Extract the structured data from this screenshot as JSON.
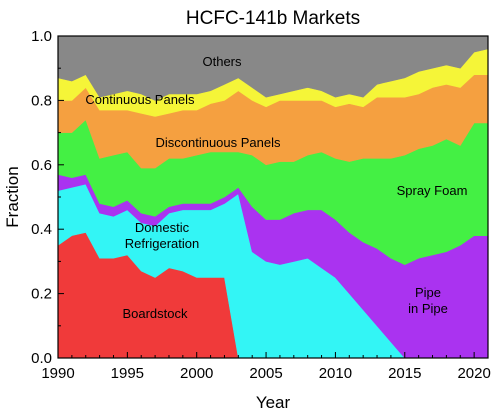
{
  "chart_data": {
    "type": "area",
    "stacked": true,
    "title": "HCFC-141b Markets",
    "xlabel": "Year",
    "ylabel": "Fraction",
    "xlim": [
      1990,
      2021
    ],
    "ylim": [
      0,
      1.0
    ],
    "xticks": [
      1990,
      1995,
      2000,
      2005,
      2010,
      2015,
      2020
    ],
    "yticks": [
      0.0,
      0.2,
      0.4,
      0.6,
      0.8,
      1.0
    ],
    "grid": false,
    "x": [
      1990,
      1991,
      1992,
      1993,
      1994,
      1995,
      1996,
      1997,
      1998,
      1999,
      2000,
      2001,
      2002,
      2003,
      2004,
      2005,
      2006,
      2007,
      2008,
      2009,
      2010,
      2011,
      2012,
      2013,
      2014,
      2015,
      2016,
      2017,
      2018,
      2019,
      2020,
      2021
    ],
    "series": [
      {
        "name": "Boardstock",
        "color": "#f03a3a",
        "values": [
          0.35,
          0.38,
          0.39,
          0.31,
          0.31,
          0.32,
          0.27,
          0.25,
          0.28,
          0.27,
          0.25,
          0.25,
          0.25,
          0.0,
          0.0,
          0.0,
          0.0,
          0.0,
          0.0,
          0.0,
          0.0,
          0.0,
          0.0,
          0.0,
          0.0,
          0.0,
          0.0,
          0.0,
          0.0,
          0.0,
          0.0,
          0.0
        ]
      },
      {
        "name": "Domestic\nRefrigeration",
        "color": "#33f5f5",
        "values": [
          0.17,
          0.15,
          0.15,
          0.14,
          0.13,
          0.14,
          0.15,
          0.16,
          0.17,
          0.19,
          0.21,
          0.21,
          0.23,
          0.51,
          0.33,
          0.3,
          0.29,
          0.3,
          0.31,
          0.28,
          0.25,
          0.2,
          0.15,
          0.1,
          0.05,
          0.0,
          0.0,
          0.0,
          0.0,
          0.0,
          0.0,
          0.0
        ]
      },
      {
        "name": "Pipe\nin Pipe",
        "color": "#aa33f0",
        "values": [
          0.05,
          0.03,
          0.03,
          0.03,
          0.03,
          0.03,
          0.03,
          0.03,
          0.02,
          0.02,
          0.02,
          0.02,
          0.02,
          0.02,
          0.14,
          0.13,
          0.14,
          0.15,
          0.15,
          0.18,
          0.18,
          0.19,
          0.21,
          0.24,
          0.26,
          0.29,
          0.31,
          0.32,
          0.33,
          0.35,
          0.38,
          0.38
        ]
      },
      {
        "name": "Spray Foam",
        "color": "#44f044",
        "values": [
          0.13,
          0.14,
          0.17,
          0.14,
          0.16,
          0.15,
          0.14,
          0.15,
          0.15,
          0.14,
          0.15,
          0.16,
          0.14,
          0.11,
          0.16,
          0.17,
          0.18,
          0.16,
          0.17,
          0.18,
          0.19,
          0.22,
          0.26,
          0.28,
          0.31,
          0.34,
          0.34,
          0.34,
          0.35,
          0.31,
          0.35,
          0.35
        ]
      },
      {
        "name": "Discontinuous Panels",
        "color": "#f5a040",
        "values": [
          0.1,
          0.1,
          0.1,
          0.15,
          0.14,
          0.13,
          0.17,
          0.16,
          0.14,
          0.15,
          0.14,
          0.15,
          0.16,
          0.19,
          0.17,
          0.18,
          0.19,
          0.19,
          0.17,
          0.16,
          0.16,
          0.18,
          0.16,
          0.19,
          0.19,
          0.18,
          0.17,
          0.18,
          0.17,
          0.18,
          0.15,
          0.15
        ]
      },
      {
        "name": "Continuous Panels",
        "color": "#f5f538",
        "values": [
          0.07,
          0.06,
          0.04,
          0.04,
          0.05,
          0.06,
          0.06,
          0.05,
          0.06,
          0.05,
          0.05,
          0.04,
          0.05,
          0.04,
          0.04,
          0.03,
          0.02,
          0.03,
          0.04,
          0.03,
          0.03,
          0.03,
          0.03,
          0.04,
          0.05,
          0.06,
          0.07,
          0.06,
          0.06,
          0.06,
          0.07,
          0.08
        ]
      },
      {
        "name": "Others",
        "color": "#888888",
        "values": [
          0.13,
          0.14,
          0.12,
          0.19,
          0.18,
          0.17,
          0.18,
          0.2,
          0.18,
          0.18,
          0.18,
          0.17,
          0.15,
          0.13,
          0.16,
          0.19,
          0.18,
          0.17,
          0.16,
          0.17,
          0.19,
          0.18,
          0.19,
          0.15,
          0.14,
          0.13,
          0.11,
          0.1,
          0.09,
          0.1,
          0.05,
          0.04
        ]
      }
    ]
  }
}
